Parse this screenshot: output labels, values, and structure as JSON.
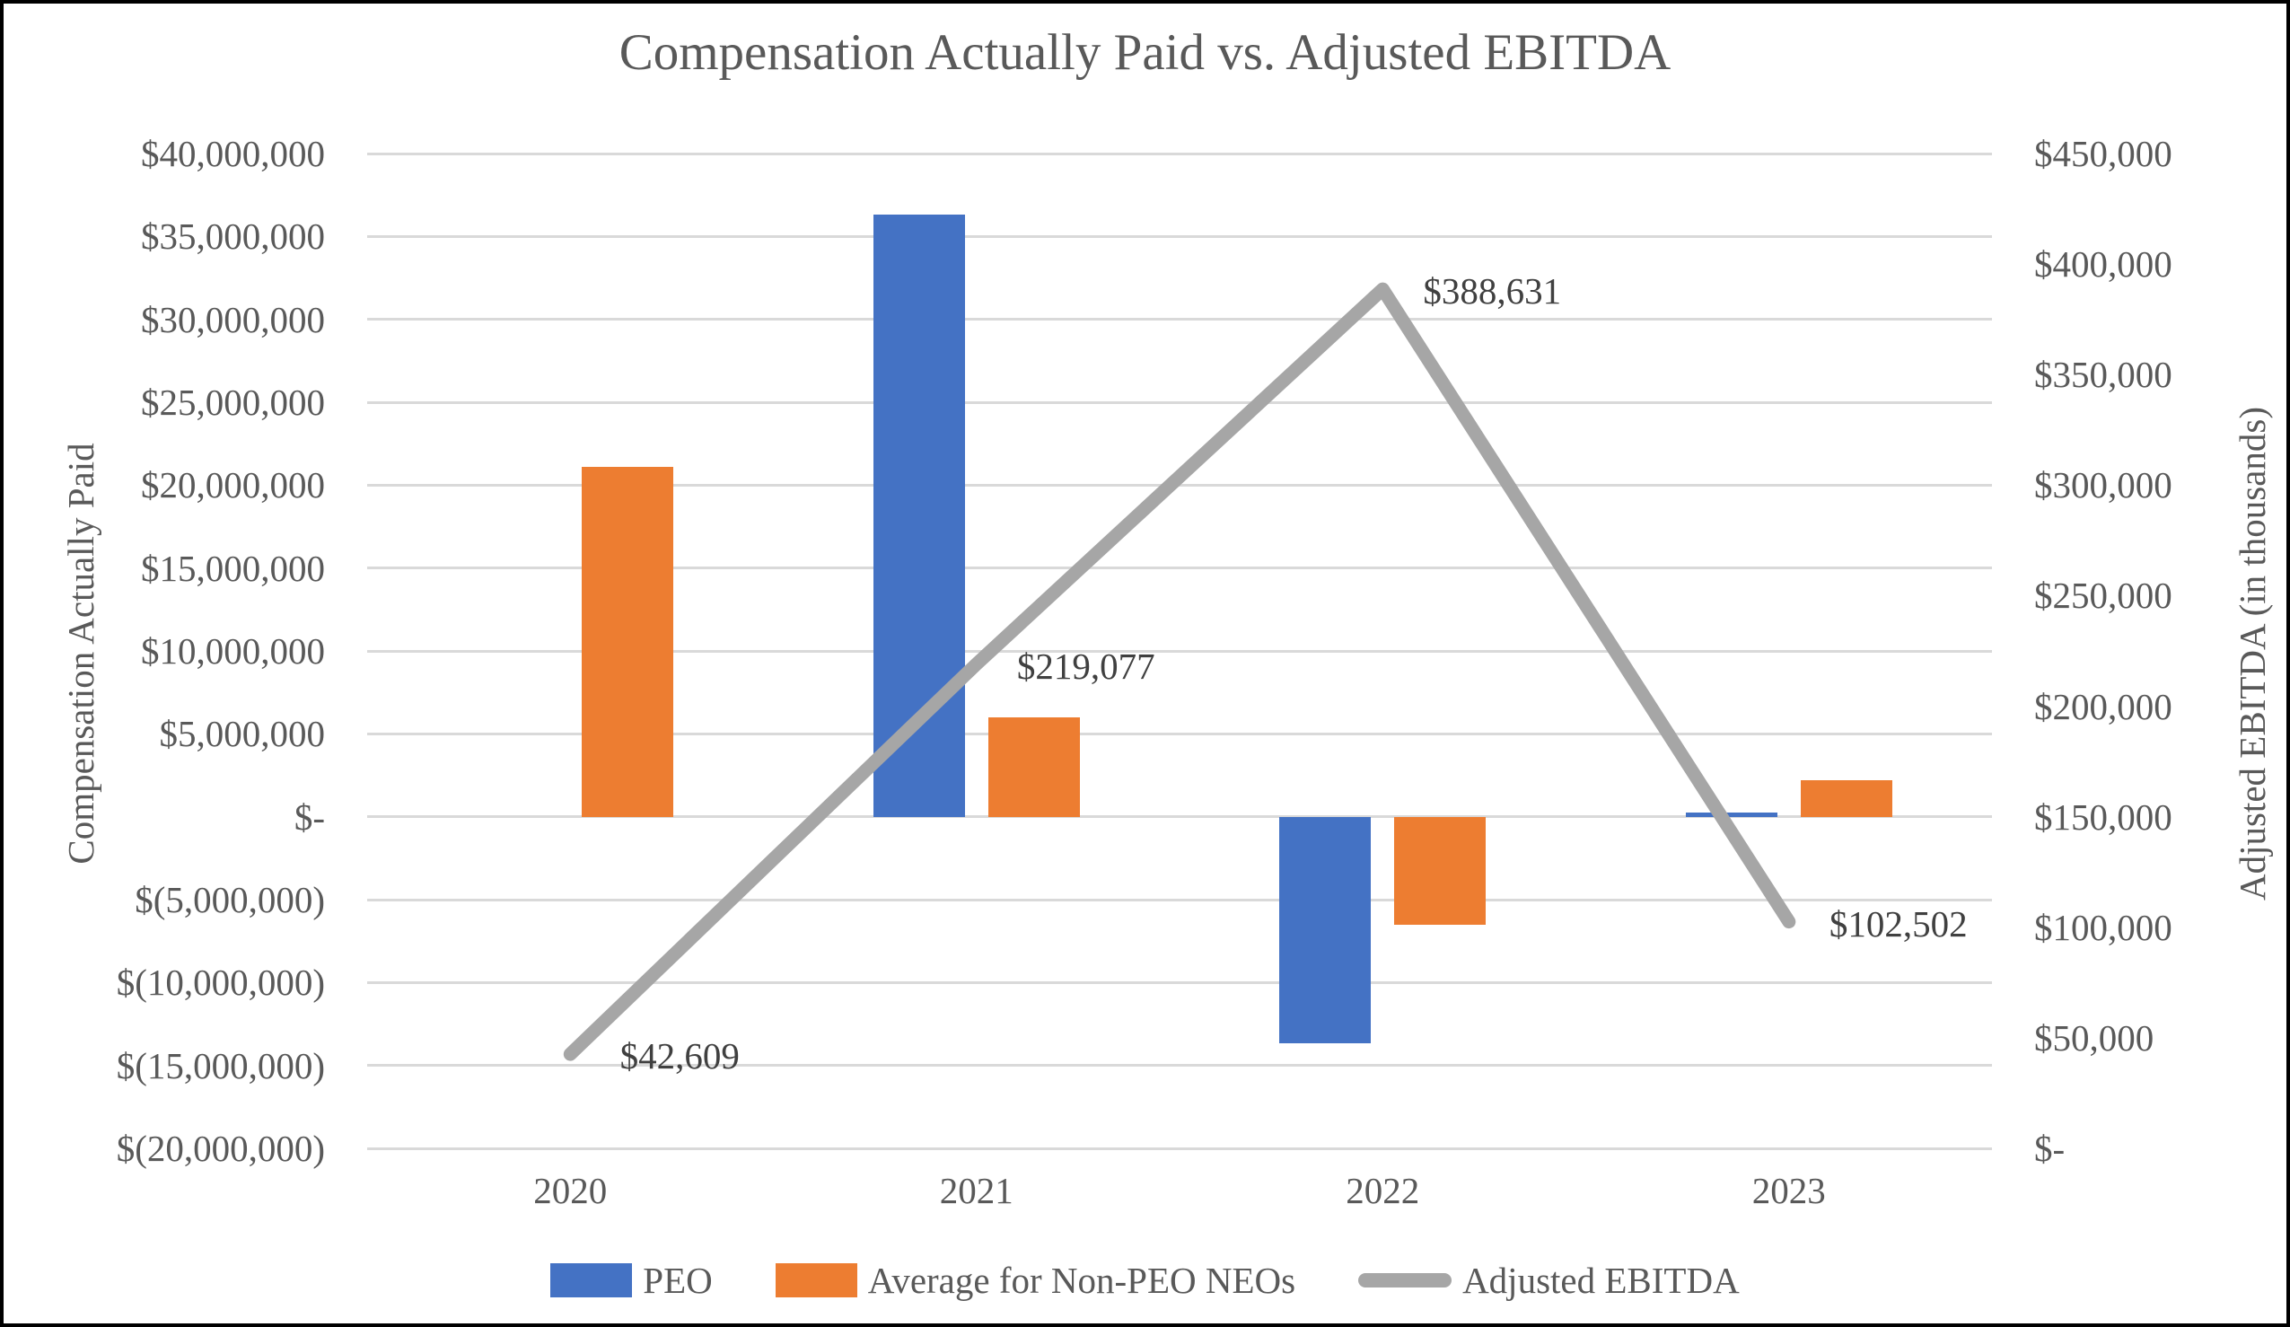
{
  "chart_data": {
    "type": "combo",
    "title": "Compensation Actually Paid vs. Adjusted EBITDA",
    "categories": [
      "2020",
      "2021",
      "2022",
      "2023"
    ],
    "series": [
      {
        "name": "PEO",
        "chart_type": "bar",
        "axis": "left",
        "color": "#4472C4",
        "values": [
          null,
          36300000,
          -13650000,
          250000
        ]
      },
      {
        "name": "Average for Non-PEO NEOs",
        "chart_type": "bar",
        "axis": "left",
        "color": "#ED7D31",
        "values": [
          21100000,
          6000000,
          -6500000,
          2200000
        ]
      },
      {
        "name": "Adjusted EBITDA",
        "chart_type": "line",
        "axis": "right",
        "color": "#A6A6A6",
        "values": [
          42609,
          219077,
          388631,
          102502
        ],
        "data_labels": [
          "$42,609",
          "$219,077",
          "$388,631",
          "$102,502"
        ]
      }
    ],
    "left_axis": {
      "title": "Compensation Actually Paid",
      "range": [
        -20000000,
        40000000
      ],
      "tick_step": 5000000,
      "tick_labels": [
        "$40,000,000",
        "$35,000,000",
        "$30,000,000",
        "$25,000,000",
        "$20,000,000",
        "$15,000,000",
        "$10,000,000",
        "$5,000,000",
        "$-",
        "$(5,000,000)",
        "$(10,000,000)",
        "$(15,000,000)",
        "$(20,000,000)"
      ]
    },
    "right_axis": {
      "title": "Adjusted EBITDA (in thousands)",
      "range": [
        0,
        450000
      ],
      "tick_step": 50000,
      "tick_labels": [
        "$450,000",
        "$400,000",
        "$350,000",
        "$300,000",
        "$250,000",
        "$200,000",
        "$150,000",
        "$100,000",
        "$50,000",
        "$-"
      ]
    },
    "legend": {
      "position": "bottom",
      "entries": [
        "PEO",
        "Average for Non-PEO NEOs",
        "Adjusted EBITDA"
      ]
    },
    "grid": true,
    "colors": {
      "grid": "#D9D9D9",
      "axis_text": "#595959",
      "data_label_text": "#404040",
      "border": "#000000",
      "background": "#FFFFFF"
    }
  }
}
